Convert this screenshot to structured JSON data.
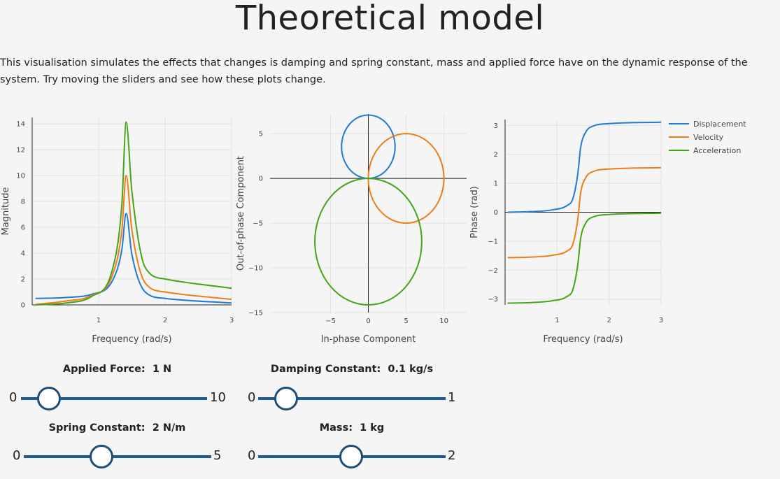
{
  "page": {
    "title": "Theoretical model",
    "intro": "This visualisation simulates the effects that changes is damping and spring constant, mass and applied force have on the dynamic response of the system. Try moving the sliders and see how these plots change."
  },
  "colors": {
    "displacement": "#1f7bd6",
    "velocity": "#ef7d16",
    "acceleration": "#43a514"
  },
  "sliders": [
    {
      "label": "Applied Force:",
      "value_text": "1 N",
      "min": "0",
      "max": "10",
      "fraction": 0.1
    },
    {
      "label": "Damping Constant:",
      "value_text": "0.1 kg/s",
      "min": "0",
      "max": "1",
      "fraction": 0.1
    },
    {
      "label": "Spring Constant:",
      "value_text": "2 N/m",
      "min": "0",
      "max": "5",
      "fraction": 0.4
    },
    {
      "label": "Mass:",
      "value_text": "1  kg",
      "min": "0",
      "max": "2",
      "fraction": 0.5
    }
  ],
  "chart_data": [
    {
      "type": "line",
      "xlabel": "Frequency (rad/s)",
      "ylabel": "Magnitude",
      "xlim": [
        0,
        3
      ],
      "ylim": [
        0,
        14.5
      ],
      "xticks": [
        1,
        2,
        3
      ],
      "yticks": [
        0,
        2,
        4,
        6,
        8,
        10,
        12,
        14
      ],
      "grid": true,
      "series": [
        {
          "name": "Displacement",
          "x": [
            0.05,
            0.5,
            0.9,
            1.2,
            1.35,
            1.414,
            1.5,
            1.7,
            2.0,
            3.0
          ],
          "y": [
            0.5,
            0.57,
            0.83,
            1.8,
            4.3,
            7.07,
            3.9,
            1.0,
            0.5,
            0.14
          ]
        },
        {
          "name": "Velocity",
          "x": [
            0.05,
            0.5,
            0.9,
            1.2,
            1.35,
            1.414,
            1.5,
            1.7,
            2.0,
            3.0
          ],
          "y": [
            0.03,
            0.29,
            0.74,
            2.2,
            5.8,
            10.0,
            5.8,
            1.7,
            1.0,
            0.43
          ]
        },
        {
          "name": "Acceleration",
          "x": [
            0.05,
            0.5,
            0.9,
            1.2,
            1.35,
            1.414,
            1.5,
            1.7,
            2.0,
            3.0
          ],
          "y": [
            0.0,
            0.14,
            0.67,
            2.6,
            7.8,
            14.14,
            8.8,
            2.9,
            2.0,
            1.29
          ]
        }
      ]
    },
    {
      "type": "line",
      "xlabel": "In-phase Component",
      "ylabel": "Out-of-phase Component",
      "xlim": [
        -13,
        13
      ],
      "ylim": [
        -15,
        7.2
      ],
      "xticks": [
        -5,
        0,
        5,
        10
      ],
      "yticks": [
        -15,
        -10,
        -5,
        0,
        5
      ],
      "grid": true,
      "series": [
        {
          "name": "Displacement",
          "shape": "circle",
          "center": [
            0,
            3.54
          ],
          "radius": 3.54
        },
        {
          "name": "Velocity",
          "shape": "circle",
          "center": [
            5,
            0
          ],
          "radius": 5
        },
        {
          "name": "Acceleration",
          "shape": "circle",
          "center": [
            0,
            -7.07
          ],
          "radius": 7.07
        }
      ]
    },
    {
      "type": "line",
      "xlabel": "Frequency (rad/s)",
      "ylabel": "Phase (rad)",
      "xlim": [
        0,
        3
      ],
      "ylim": [
        -3.2,
        3.2
      ],
      "xticks": [
        1,
        2,
        3
      ],
      "yticks": [
        -3,
        -2,
        -1,
        0,
        1,
        2,
        3
      ],
      "grid": true,
      "legend": "top-right",
      "series": [
        {
          "name": "Displacement",
          "x": [
            0.05,
            0.5,
            0.9,
            1.2,
            1.3,
            1.38,
            1.414,
            1.45,
            1.55,
            1.7,
            2.0,
            3.0
          ],
          "y": [
            0.0,
            0.02,
            0.08,
            0.24,
            0.45,
            1.1,
            1.57,
            2.2,
            2.76,
            2.98,
            3.06,
            3.11
          ]
        },
        {
          "name": "Velocity",
          "x": [
            0.05,
            0.5,
            0.9,
            1.2,
            1.3,
            1.38,
            1.414,
            1.45,
            1.55,
            1.7,
            2.0,
            3.0
          ],
          "y": [
            -1.57,
            -1.55,
            -1.49,
            -1.33,
            -1.12,
            -0.47,
            0.0,
            0.63,
            1.19,
            1.41,
            1.49,
            1.54
          ]
        },
        {
          "name": "Acceleration",
          "x": [
            0.05,
            0.5,
            0.9,
            1.2,
            1.3,
            1.38,
            1.414,
            1.45,
            1.55,
            1.7,
            2.0,
            3.0
          ],
          "y": [
            -3.14,
            -3.12,
            -3.06,
            -2.9,
            -2.69,
            -2.04,
            -1.57,
            -0.94,
            -0.38,
            -0.16,
            -0.08,
            -0.03
          ]
        }
      ]
    }
  ]
}
